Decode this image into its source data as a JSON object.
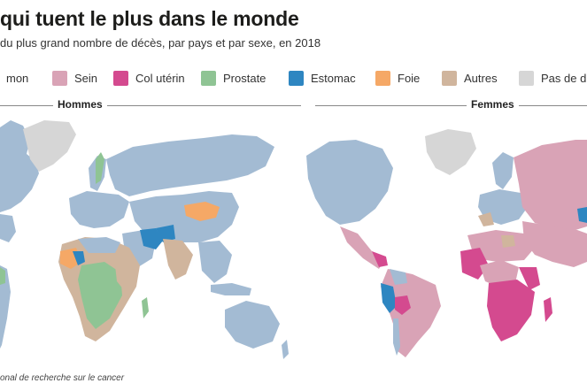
{
  "header": {
    "title": "qui tuent le plus dans le monde",
    "subtitle": "du plus grand nombre de décès, par pays et par sexe, en 2018"
  },
  "legend": [
    {
      "label": "mon",
      "color": "#a3bbd3"
    },
    {
      "label": "Sein",
      "color": "#d9a3b6"
    },
    {
      "label": "Col utérin",
      "color": "#d44a8f"
    },
    {
      "label": "Prostate",
      "color": "#8fc494"
    },
    {
      "label": "Estomac",
      "color": "#2e86c1"
    },
    {
      "label": "Foie",
      "color": "#f5a866"
    },
    {
      "label": "Autres",
      "color": "#d0b59d"
    },
    {
      "label": "Pas de d",
      "color": "#d6d6d6"
    }
  ],
  "panels": {
    "men": {
      "title": "Hommes"
    },
    "women": {
      "title": "Femmes"
    }
  },
  "source": "onal de recherche sur le cancer"
}
